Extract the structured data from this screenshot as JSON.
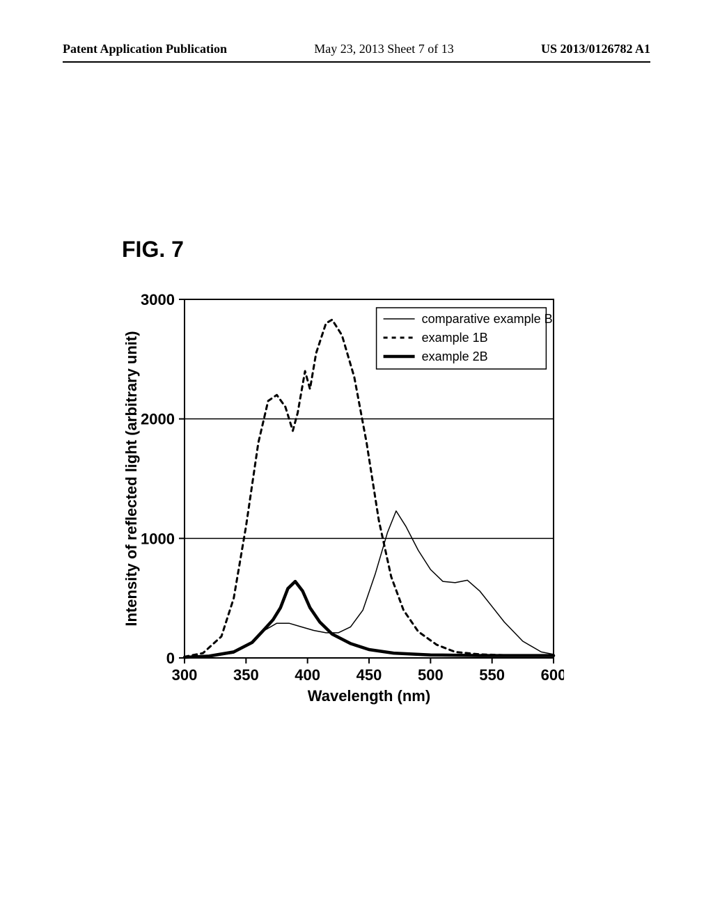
{
  "header": {
    "left": "Patent Application Publication",
    "middle": "May 23, 2013  Sheet 7 of 13",
    "right": "US 2013/0126782 A1"
  },
  "figure": {
    "label": "FIG. 7"
  },
  "chart": {
    "type": "line",
    "background_color": "#ffffff",
    "border_color": "#000000",
    "border_width": 2,
    "xlabel": "Wavelength (nm)",
    "ylabel": "Intensity of reflected light (arbitrary unit)",
    "label_fontsize": 22,
    "tick_fontsize": 22,
    "xlim": [
      300,
      600
    ],
    "ylim": [
      0,
      3000
    ],
    "xticks": [
      300,
      350,
      400,
      450,
      500,
      550,
      600
    ],
    "yticks": [
      0,
      1000,
      2000,
      3000
    ],
    "grid_y": true,
    "grid_color": "#000000",
    "grid_width": 1.5,
    "legend": {
      "position": "top-right",
      "border_color": "#000000",
      "border_width": 1.5,
      "items": [
        {
          "label": "comparative example B",
          "style": "thin-solid"
        },
        {
          "label": "example 1B",
          "style": "dashed"
        },
        {
          "label": "example 2B",
          "style": "thick-solid"
        }
      ]
    },
    "series": [
      {
        "name": "comparative example B",
        "color": "#000000",
        "line_width": 1.5,
        "dash": "none",
        "data": [
          [
            300,
            5
          ],
          [
            320,
            10
          ],
          [
            340,
            40
          ],
          [
            355,
            130
          ],
          [
            365,
            230
          ],
          [
            375,
            290
          ],
          [
            385,
            290
          ],
          [
            395,
            260
          ],
          [
            405,
            230
          ],
          [
            415,
            210
          ],
          [
            425,
            210
          ],
          [
            435,
            260
          ],
          [
            445,
            400
          ],
          [
            455,
            700
          ],
          [
            465,
            1050
          ],
          [
            472,
            1230
          ],
          [
            480,
            1100
          ],
          [
            490,
            900
          ],
          [
            500,
            740
          ],
          [
            510,
            640
          ],
          [
            520,
            630
          ],
          [
            530,
            650
          ],
          [
            540,
            560
          ],
          [
            550,
            430
          ],
          [
            560,
            300
          ],
          [
            575,
            140
          ],
          [
            590,
            50
          ],
          [
            600,
            30
          ]
        ]
      },
      {
        "name": "example 1B",
        "color": "#000000",
        "line_width": 3,
        "dash": "6,6",
        "data": [
          [
            300,
            10
          ],
          [
            315,
            40
          ],
          [
            330,
            180
          ],
          [
            340,
            500
          ],
          [
            350,
            1100
          ],
          [
            360,
            1800
          ],
          [
            368,
            2150
          ],
          [
            375,
            2200
          ],
          [
            382,
            2100
          ],
          [
            388,
            1900
          ],
          [
            392,
            2050
          ],
          [
            398,
            2400
          ],
          [
            402,
            2250
          ],
          [
            407,
            2550
          ],
          [
            415,
            2800
          ],
          [
            420,
            2830
          ],
          [
            428,
            2700
          ],
          [
            438,
            2350
          ],
          [
            448,
            1800
          ],
          [
            458,
            1150
          ],
          [
            468,
            680
          ],
          [
            478,
            400
          ],
          [
            490,
            220
          ],
          [
            505,
            110
          ],
          [
            520,
            50
          ],
          [
            540,
            30
          ],
          [
            570,
            20
          ],
          [
            600,
            20
          ]
        ]
      },
      {
        "name": "example 2B",
        "color": "#000000",
        "line_width": 4.5,
        "dash": "none",
        "data": [
          [
            300,
            5
          ],
          [
            320,
            15
          ],
          [
            340,
            50
          ],
          [
            355,
            130
          ],
          [
            365,
            240
          ],
          [
            372,
            320
          ],
          [
            378,
            420
          ],
          [
            384,
            580
          ],
          [
            390,
            640
          ],
          [
            396,
            560
          ],
          [
            402,
            420
          ],
          [
            410,
            300
          ],
          [
            420,
            200
          ],
          [
            435,
            120
          ],
          [
            450,
            70
          ],
          [
            470,
            40
          ],
          [
            500,
            25
          ],
          [
            540,
            20
          ],
          [
            600,
            20
          ]
        ]
      }
    ]
  }
}
